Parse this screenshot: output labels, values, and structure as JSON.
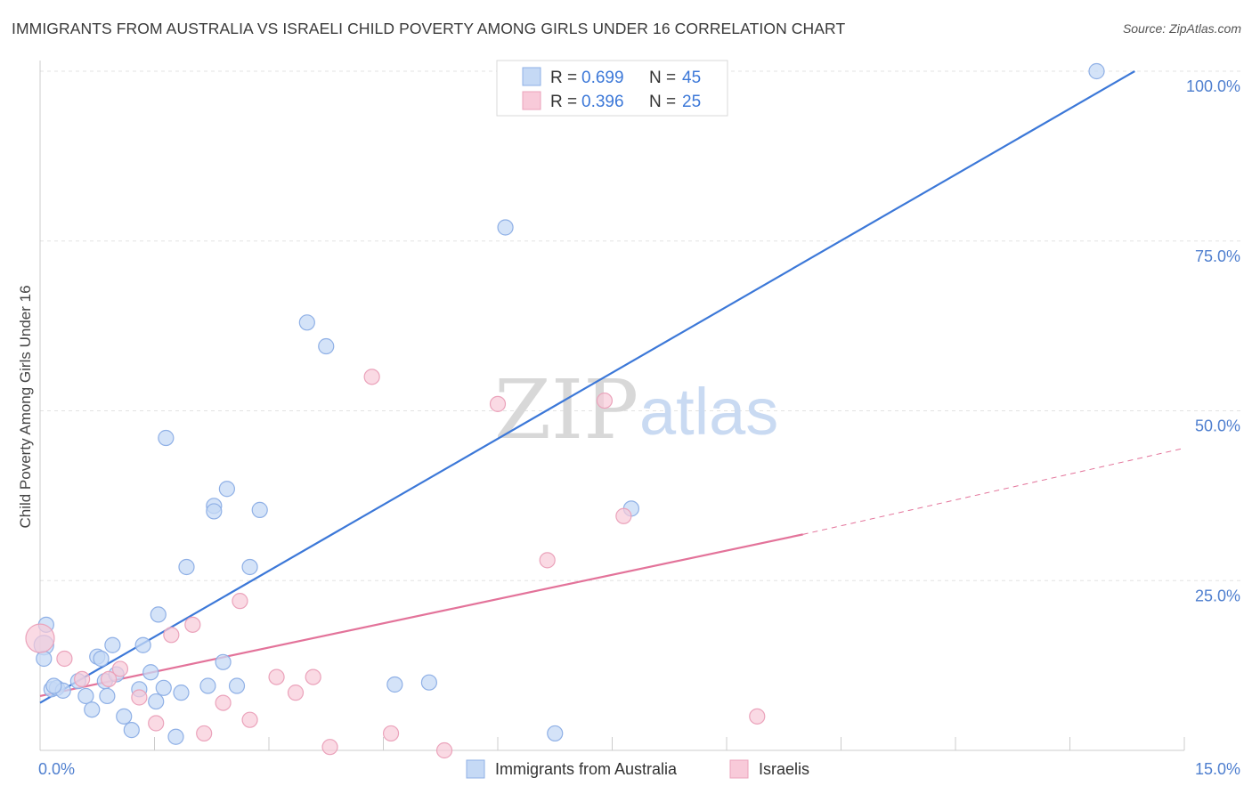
{
  "title": "IMMIGRANTS FROM AUSTRALIA VS ISRAELI CHILD POVERTY AMONG GIRLS UNDER 16 CORRELATION CHART",
  "source": "Source: ZipAtlas.com",
  "watermark": {
    "left": "ZIP",
    "right": "atlas"
  },
  "colors": {
    "blue": "#3c78d8",
    "blue_fill": "#c5d9f5",
    "pink": "#e3739a",
    "pink_fill": "#f8cad9",
    "tick": "#4f7fcf"
  },
  "chart_data": {
    "type": "scatter",
    "title": "IMMIGRANTS FROM AUSTRALIA VS ISRAELI CHILD POVERTY AMONG GIRLS UNDER 16 CORRELATION CHART",
    "xlabel": "",
    "ylabel": "Child Poverty Among Girls Under 16",
    "xlim": [
      0,
      15
    ],
    "ylim": [
      0,
      100
    ],
    "x_ticks": [
      {
        "value": 0,
        "label": "0.0%"
      },
      {
        "value": 15,
        "label": "15.0%"
      }
    ],
    "y_ticks": [
      {
        "value": 25,
        "label": "25.0%"
      },
      {
        "value": 50,
        "label": "50.0%"
      },
      {
        "value": 75,
        "label": "75.0%"
      },
      {
        "value": 100,
        "label": "100.0%"
      }
    ],
    "grid": true,
    "legend": {
      "placement": "top-center",
      "entries": [
        {
          "r_label": "R = ",
          "r_value": "0.699",
          "n_label": "N = ",
          "n_value": "45"
        },
        {
          "r_label": "R = ",
          "r_value": "0.396",
          "n_label": "N = ",
          "n_value": "25"
        }
      ]
    },
    "series": [
      {
        "name": "Immigrants from Australia",
        "color": "#3c78d8",
        "trend": {
          "x0": 0,
          "y0": 7,
          "x1": 14.35,
          "y1": 100
        },
        "points": [
          [
            0.05,
            15.5
          ],
          [
            0.05,
            13.5
          ],
          [
            0.15,
            9
          ],
          [
            0.22,
            9.2
          ],
          [
            0.3,
            8.8
          ],
          [
            0.5,
            10.2
          ],
          [
            0.6,
            8
          ],
          [
            0.68,
            6
          ],
          [
            0.75,
            13.8
          ],
          [
            0.8,
            13.5
          ],
          [
            0.85,
            10.2
          ],
          [
            0.88,
            8
          ],
          [
            0.95,
            15.5
          ],
          [
            1.0,
            11.2
          ],
          [
            1.1,
            5
          ],
          [
            1.2,
            3
          ],
          [
            1.3,
            9
          ],
          [
            1.35,
            15.5
          ],
          [
            1.45,
            11.5
          ],
          [
            1.52,
            7.2
          ],
          [
            1.55,
            20
          ],
          [
            1.62,
            9.2
          ],
          [
            1.65,
            46
          ],
          [
            1.78,
            2
          ],
          [
            1.85,
            8.5
          ],
          [
            1.92,
            27
          ],
          [
            2.2,
            9.5
          ],
          [
            2.28,
            36
          ],
          [
            2.28,
            35.2
          ],
          [
            2.45,
            38.5
          ],
          [
            2.4,
            13
          ],
          [
            2.58,
            9.5
          ],
          [
            2.75,
            27
          ],
          [
            2.88,
            35.4
          ],
          [
            3.5,
            63
          ],
          [
            3.75,
            59.5
          ],
          [
            4.65,
            9.7
          ],
          [
            5.1,
            10
          ],
          [
            6.1,
            77
          ],
          [
            6.75,
            2.5
          ],
          [
            7.75,
            35.6
          ],
          [
            13.85,
            100
          ],
          [
            6.72,
            100
          ],
          [
            0.08,
            18.5
          ],
          [
            0.18,
            9.5
          ]
        ]
      },
      {
        "name": "Israelis",
        "color": "#e3739a",
        "trend": {
          "x0": 0,
          "y0": 8,
          "x1": 10.0,
          "y1": 31.8,
          "dash_x1": 15,
          "dash_y1": 44.5
        },
        "points": [
          [
            0.0,
            16.5
          ],
          [
            0.32,
            13.5
          ],
          [
            0.55,
            10.5
          ],
          [
            0.9,
            10.5
          ],
          [
            1.05,
            12
          ],
          [
            1.3,
            7.8
          ],
          [
            1.52,
            4
          ],
          [
            1.72,
            17
          ],
          [
            2.0,
            18.5
          ],
          [
            2.15,
            2.5
          ],
          [
            2.4,
            7
          ],
          [
            2.62,
            22
          ],
          [
            2.75,
            4.5
          ],
          [
            3.1,
            10.8
          ],
          [
            3.35,
            8.5
          ],
          [
            3.58,
            10.8
          ],
          [
            3.8,
            0.5
          ],
          [
            4.35,
            55
          ],
          [
            4.6,
            2.5
          ],
          [
            5.3,
            0
          ],
          [
            6.0,
            51
          ],
          [
            6.65,
            28
          ],
          [
            7.4,
            51.5
          ],
          [
            7.65,
            34.5
          ],
          [
            9.4,
            5
          ]
        ]
      }
    ]
  }
}
